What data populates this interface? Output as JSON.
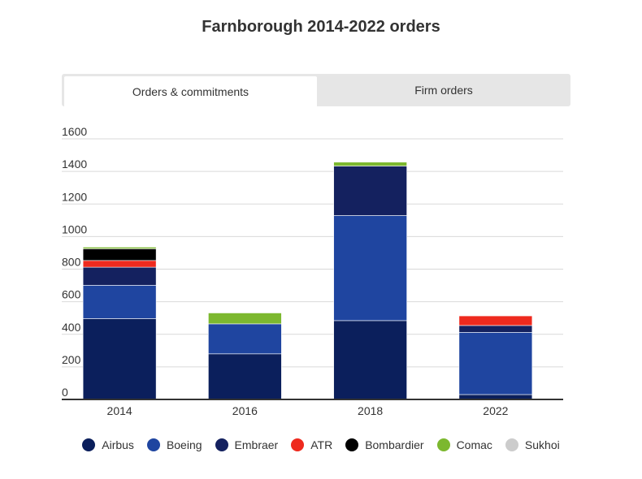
{
  "title": "Farnborough 2014-2022 orders",
  "tabs": [
    {
      "label": "Orders & commitments",
      "active": true
    },
    {
      "label": "Firm orders",
      "active": false
    }
  ],
  "chart_data": {
    "type": "bar",
    "stacked": true,
    "title": "Farnborough 2014-2022 orders",
    "categories": [
      "2014",
      "2016",
      "2018",
      "2022"
    ],
    "ylim": [
      0,
      1600
    ],
    "yticks": [
      "0",
      "200",
      "400",
      "600",
      "800",
      "1000",
      "1200",
      "1400",
      "1600"
    ],
    "grid": true,
    "legend_position": "bottom",
    "series": [
      {
        "name": "Airbus",
        "color": "#0b1f5c",
        "values": [
          496,
          280,
          484,
          30
        ]
      },
      {
        "name": "Boeing",
        "color": "#1f45a0",
        "values": [
          205,
          184,
          645,
          382
        ]
      },
      {
        "name": "Embraer",
        "color": "#14215f",
        "values": [
          111,
          0,
          304,
          42
        ]
      },
      {
        "name": "ATR",
        "color": "#ee2a1e",
        "values": [
          41,
          0,
          0,
          59
        ]
      },
      {
        "name": "Bombardier",
        "color": "#000000",
        "values": [
          72,
          0,
          0,
          0
        ]
      },
      {
        "name": "Comac",
        "color": "#7cb82f",
        "values": [
          10,
          67,
          24,
          0
        ]
      },
      {
        "name": "Sukhoi",
        "color": "#cccccc",
        "values": [
          0,
          0,
          0,
          0
        ]
      }
    ]
  }
}
